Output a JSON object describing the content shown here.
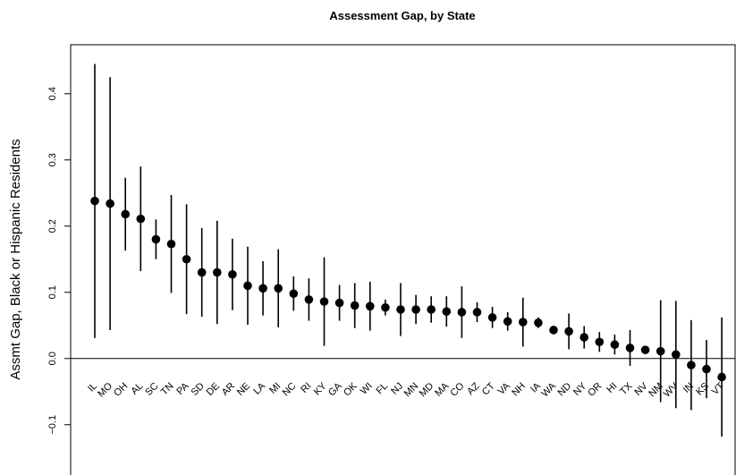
{
  "chart_data": {
    "type": "errorbar",
    "title": "Assessment Gap, by State",
    "y_label": "Assmt Gap, Black or Hispanic Residents",
    "categories": [
      "IL",
      "MO",
      "OH",
      "AL",
      "SC",
      "TN",
      "PA",
      "SD",
      "DE",
      "AR",
      "NE",
      "LA",
      "MI",
      "NC",
      "RI",
      "KY",
      "GA",
      "OK",
      "WI",
      "FL",
      "NJ",
      "MN",
      "MD",
      "MA",
      "CO",
      "AZ",
      "CT",
      "VA",
      "NH",
      "IA",
      "WA",
      "ND",
      "NY",
      "OR",
      "HI",
      "TX",
      "NV",
      "NM",
      "WV",
      "IN",
      "KS",
      "VT"
    ],
    "values": [
      0.238,
      0.234,
      0.218,
      0.211,
      0.18,
      0.173,
      0.15,
      0.13,
      0.13,
      0.127,
      0.11,
      0.106,
      0.106,
      0.098,
      0.089,
      0.086,
      0.084,
      0.08,
      0.079,
      0.077,
      0.074,
      0.074,
      0.074,
      0.071,
      0.07,
      0.07,
      0.062,
      0.056,
      0.055,
      0.054,
      0.043,
      0.041,
      0.032,
      0.025,
      0.021,
      0.016,
      0.013,
      0.011,
      0.006,
      -0.01,
      -0.016,
      -0.028
    ],
    "errors": [
      0.207,
      0.191,
      0.055,
      0.079,
      0.03,
      0.074,
      0.083,
      0.067,
      0.078,
      0.054,
      0.059,
      0.041,
      0.059,
      0.026,
      0.032,
      0.067,
      0.027,
      0.034,
      0.037,
      0.012,
      0.04,
      0.022,
      0.02,
      0.023,
      0.039,
      0.015,
      0.016,
      0.014,
      0.037,
      0.008,
      0.006,
      0.027,
      0.017,
      0.015,
      0.015,
      0.027,
      0.006,
      0.077,
      0.081,
      0.068,
      0.044,
      0.09
    ],
    "color": "#000000",
    "ylim": [
      -0.176,
      0.474
    ],
    "yticks": [
      {
        "value": -0.1,
        "label": "−0.1"
      },
      {
        "value": 0,
        "label": "0.0"
      },
      0.1,
      0.2,
      0.3,
      0.4
    ],
    "reference_line": 0
  }
}
